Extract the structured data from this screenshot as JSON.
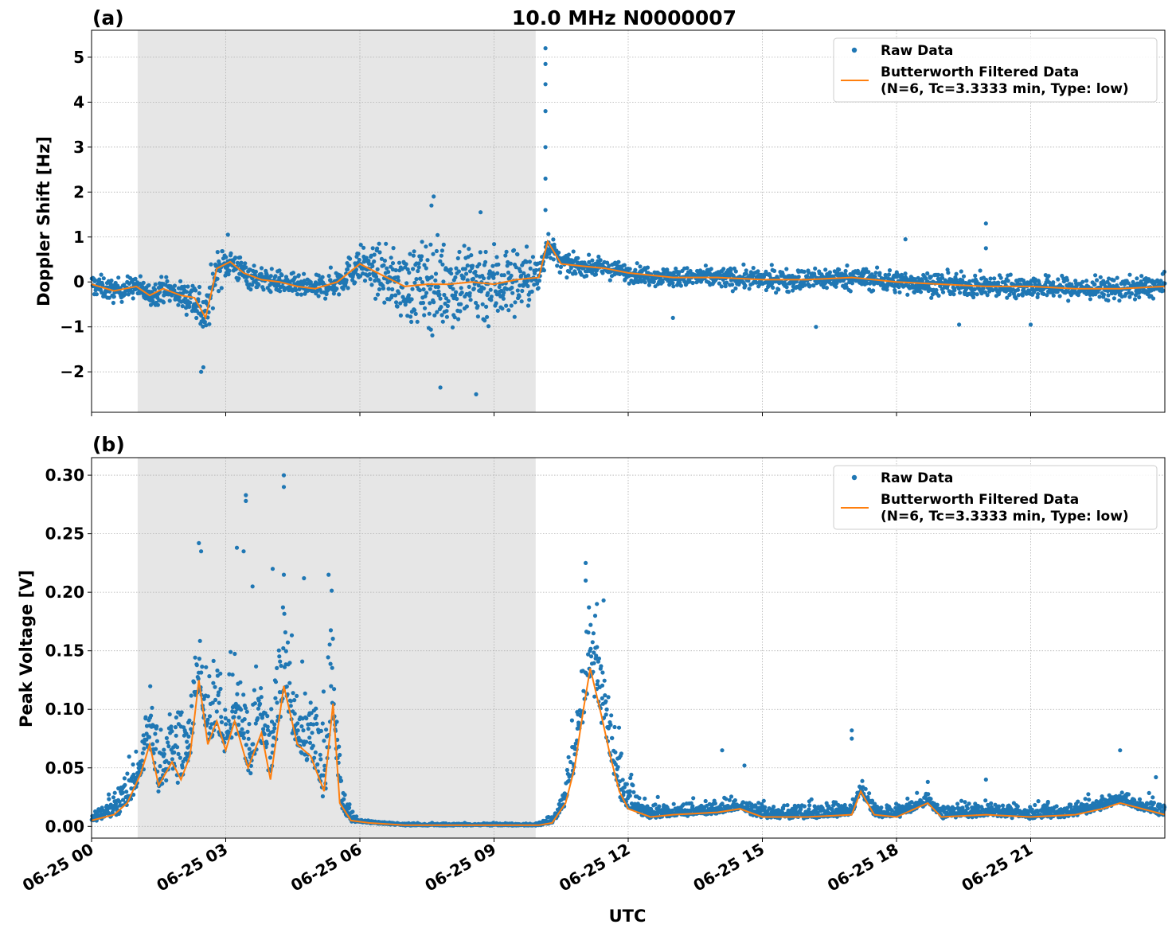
{
  "figure": {
    "title": "10.0 MHz N0000007",
    "xlabel": "UTC",
    "x_ticks": [
      "06-25 00",
      "06-25 03",
      "06-25 06",
      "06-25 09",
      "06-25 12",
      "06-25 15",
      "06-25 18",
      "06-25 21"
    ]
  },
  "colors": {
    "raw": "#1f77b4",
    "filtered": "#ff7f0e",
    "shade": "#e6e6e6",
    "grid": "#b0b0b0"
  },
  "chart_data": [
    {
      "type": "scatter",
      "panel_label": "(a)",
      "title": "10.0 MHz N0000007",
      "xlabel": "",
      "ylabel": "Doppler Shift [Hz]",
      "xlim": [
        0,
        24
      ],
      "ylim": [
        -2.9,
        5.6
      ],
      "y_ticks": [
        5,
        4,
        3,
        2,
        1,
        0,
        -1,
        -2
      ],
      "y_tick_labels": [
        "5",
        "4",
        "3",
        "2",
        "1",
        "0",
        "−1",
        "−2"
      ],
      "shaded_region": [
        1.03,
        9.93
      ],
      "legend": [
        "Raw Data",
        "Butterworth Filtered Data",
        "(N=6, Tc=3.3333 min, Type: low)"
      ],
      "series": [
        {
          "name": "Butterworth Filtered Data",
          "style": "line",
          "x": [
            0,
            0.5,
            1.0,
            1.3,
            1.6,
            2.0,
            2.3,
            2.55,
            2.8,
            3.1,
            3.4,
            3.8,
            4.2,
            4.6,
            5.0,
            5.5,
            6.0,
            6.5,
            7.0,
            7.5,
            8.0,
            8.5,
            9.0,
            9.5,
            10.0,
            10.2,
            10.5,
            11.0,
            11.5,
            12.0,
            13.0,
            14.0,
            15.0,
            16.0,
            17.0,
            18.0,
            19.0,
            20.0,
            21.0,
            22.0,
            23.0,
            24.0
          ],
          "y": [
            -0.05,
            -0.2,
            -0.1,
            -0.3,
            -0.15,
            -0.3,
            -0.35,
            -0.8,
            0.3,
            0.45,
            0.2,
            0.05,
            0.0,
            -0.1,
            -0.15,
            0.0,
            0.4,
            0.15,
            -0.1,
            -0.05,
            -0.05,
            0.0,
            -0.05,
            0.05,
            0.1,
            0.9,
            0.4,
            0.35,
            0.3,
            0.2,
            0.1,
            0.1,
            0.05,
            0.05,
            0.1,
            0.0,
            -0.05,
            -0.1,
            -0.1,
            -0.15,
            -0.15,
            -0.1
          ]
        },
        {
          "name": "Raw Data",
          "style": "points",
          "spread_x": [
            0,
            1.0,
            2.0,
            2.5,
            3.0,
            4.0,
            5.0,
            6.0,
            6.8,
            7.5,
            8.0,
            8.5,
            9.0,
            9.5,
            9.95,
            10.3,
            11.0,
            12.0,
            16.0,
            20.0,
            24.0
          ],
          "spread_y": [
            0.25,
            0.25,
            0.3,
            0.6,
            0.35,
            0.25,
            0.25,
            0.4,
            0.7,
            1.0,
            1.0,
            1.0,
            0.95,
            0.8,
            0.5,
            0.25,
            0.2,
            0.2,
            0.25,
            0.25,
            0.25
          ],
          "outliers": [
            [
              2.45,
              -2.0
            ],
            [
              2.5,
              -1.9
            ],
            [
              3.05,
              1.05
            ],
            [
              7.65,
              1.9
            ],
            [
              7.6,
              1.7
            ],
            [
              8.7,
              1.55
            ],
            [
              8.6,
              -2.5
            ],
            [
              7.8,
              -2.35
            ],
            [
              10.15,
              5.2
            ],
            [
              10.15,
              4.85
            ],
            [
              10.15,
              4.4
            ],
            [
              10.15,
              3.8
            ],
            [
              10.15,
              3.0
            ],
            [
              10.15,
              2.3
            ],
            [
              10.15,
              1.6
            ],
            [
              20.0,
              1.3
            ],
            [
              20.0,
              0.75
            ],
            [
              18.2,
              0.95
            ],
            [
              16.2,
              -1.0
            ],
            [
              13.0,
              -0.8
            ],
            [
              19.4,
              -0.95
            ],
            [
              21.0,
              -0.95
            ]
          ]
        }
      ]
    },
    {
      "type": "scatter",
      "panel_label": "(b)",
      "title": "",
      "xlabel": "UTC",
      "ylabel": "Peak Voltage [V]",
      "xlim": [
        0,
        24
      ],
      "ylim": [
        -0.01,
        0.315
      ],
      "y_ticks": [
        0.3,
        0.25,
        0.2,
        0.15,
        0.1,
        0.05,
        0.0
      ],
      "y_tick_labels": [
        "0.30",
        "0.25",
        "0.20",
        "0.15",
        "0.10",
        "0.05",
        "0.00"
      ],
      "shaded_region": [
        1.03,
        9.93
      ],
      "legend": [
        "Raw Data",
        "Butterworth Filtered Data",
        "(N=6, Tc=3.3333 min, Type: low)"
      ],
      "series": [
        {
          "name": "Butterworth Filtered Data",
          "style": "line",
          "x": [
            0,
            0.5,
            0.8,
            1.1,
            1.3,
            1.5,
            1.8,
            2.0,
            2.2,
            2.4,
            2.6,
            2.8,
            3.0,
            3.2,
            3.5,
            3.8,
            4.0,
            4.3,
            4.6,
            4.9,
            5.2,
            5.4,
            5.55,
            5.8,
            6.2,
            7.0,
            8.0,
            9.0,
            10.0,
            10.3,
            10.6,
            10.8,
            11.0,
            11.15,
            11.4,
            11.6,
            11.8,
            12.0,
            12.5,
            13.0,
            14.0,
            14.5,
            15.0,
            16.0,
            17.0,
            17.2,
            17.5,
            18.0,
            18.7,
            19.0,
            20.0,
            21.0,
            22.0,
            22.6,
            23.0,
            24.0
          ],
          "y": [
            0.005,
            0.01,
            0.02,
            0.045,
            0.07,
            0.035,
            0.055,
            0.04,
            0.06,
            0.125,
            0.07,
            0.09,
            0.065,
            0.09,
            0.05,
            0.08,
            0.04,
            0.12,
            0.07,
            0.06,
            0.03,
            0.105,
            0.02,
            0.005,
            0.003,
            0.001,
            0.001,
            0.001,
            0.001,
            0.003,
            0.02,
            0.05,
            0.1,
            0.135,
            0.095,
            0.06,
            0.03,
            0.015,
            0.008,
            0.01,
            0.012,
            0.015,
            0.008,
            0.008,
            0.01,
            0.03,
            0.01,
            0.008,
            0.02,
            0.008,
            0.01,
            0.008,
            0.01,
            0.015,
            0.02,
            0.01
          ]
        },
        {
          "name": "Raw Data",
          "style": "points",
          "spread_x": [
            0,
            1.0,
            2.4,
            3.5,
            4.5,
            5.4,
            5.6,
            6.0,
            9.9,
            10.5,
            11.1,
            11.8,
            12.3,
            13.0,
            24.0
          ],
          "spread_y": [
            0.005,
            0.04,
            0.07,
            0.07,
            0.09,
            0.09,
            0.02,
            0.002,
            0.002,
            0.01,
            0.09,
            0.05,
            0.015,
            0.012,
            0.012
          ],
          "outliers": [
            [
              4.3,
              0.3
            ],
            [
              4.3,
              0.29
            ],
            [
              3.45,
              0.283
            ],
            [
              3.45,
              0.278
            ],
            [
              2.4,
              0.242
            ],
            [
              2.45,
              0.235
            ],
            [
              3.25,
              0.238
            ],
            [
              3.4,
              0.235
            ],
            [
              3.6,
              0.205
            ],
            [
              4.05,
              0.22
            ],
            [
              4.3,
              0.215
            ],
            [
              5.3,
              0.215
            ],
            [
              4.75,
              0.212
            ],
            [
              11.05,
              0.225
            ],
            [
              11.05,
              0.21
            ],
            [
              11.3,
              0.19
            ],
            [
              11.45,
              0.193
            ],
            [
              17.0,
              0.082
            ],
            [
              17.0,
              0.075
            ],
            [
              14.1,
              0.065
            ],
            [
              23.0,
              0.065
            ],
            [
              20.0,
              0.04
            ],
            [
              18.7,
              0.038
            ],
            [
              14.6,
              0.052
            ],
            [
              23.8,
              0.042
            ]
          ]
        }
      ]
    }
  ]
}
